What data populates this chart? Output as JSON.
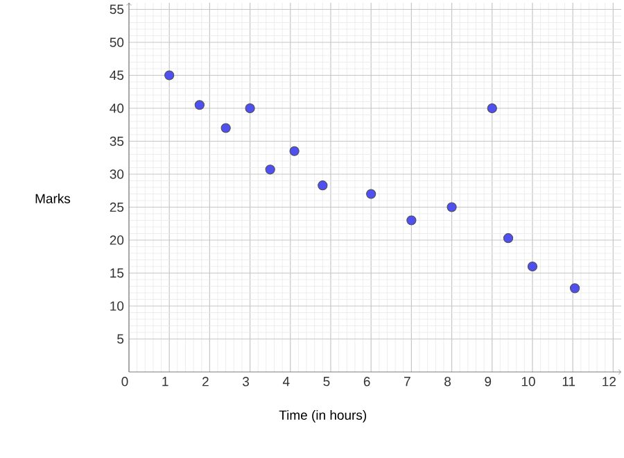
{
  "chart_data": {
    "type": "scatter",
    "xlabel": "Time (in hours)",
    "ylabel": "Marks",
    "x": [
      1,
      1.75,
      2.4,
      3,
      3.5,
      4.1,
      4.8,
      6,
      7,
      8,
      9,
      9.4,
      10,
      11.05
    ],
    "values": [
      45,
      40.5,
      37,
      40,
      30.7,
      33.5,
      28.3,
      27,
      23,
      25,
      40,
      20.3,
      16,
      12.7
    ],
    "color": "#5050f0",
    "marker": "circle",
    "grid": true,
    "xlim": [
      0,
      12.2
    ],
    "ylim": [
      0,
      56
    ],
    "xticks": [
      0,
      1,
      2,
      3,
      4,
      5,
      6,
      7,
      8,
      9,
      10,
      11,
      12
    ],
    "yticks": [
      5,
      10,
      15,
      20,
      25,
      30,
      35,
      40,
      45,
      50,
      55
    ]
  }
}
